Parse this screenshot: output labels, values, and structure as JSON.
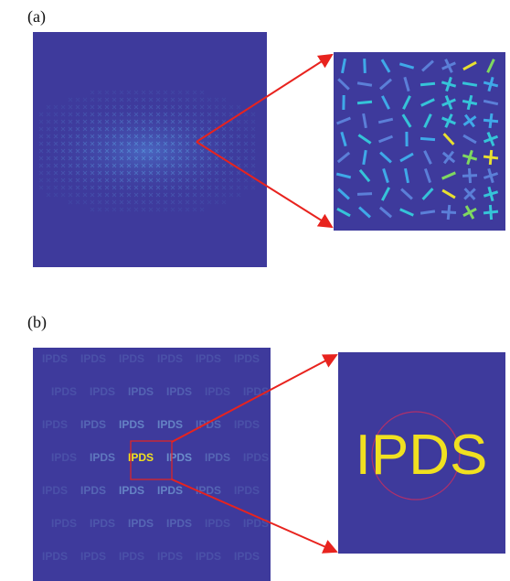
{
  "panels": [
    {
      "label": "(a)"
    },
    {
      "label": "(b)"
    }
  ],
  "tile_text": "IPDS"
}
